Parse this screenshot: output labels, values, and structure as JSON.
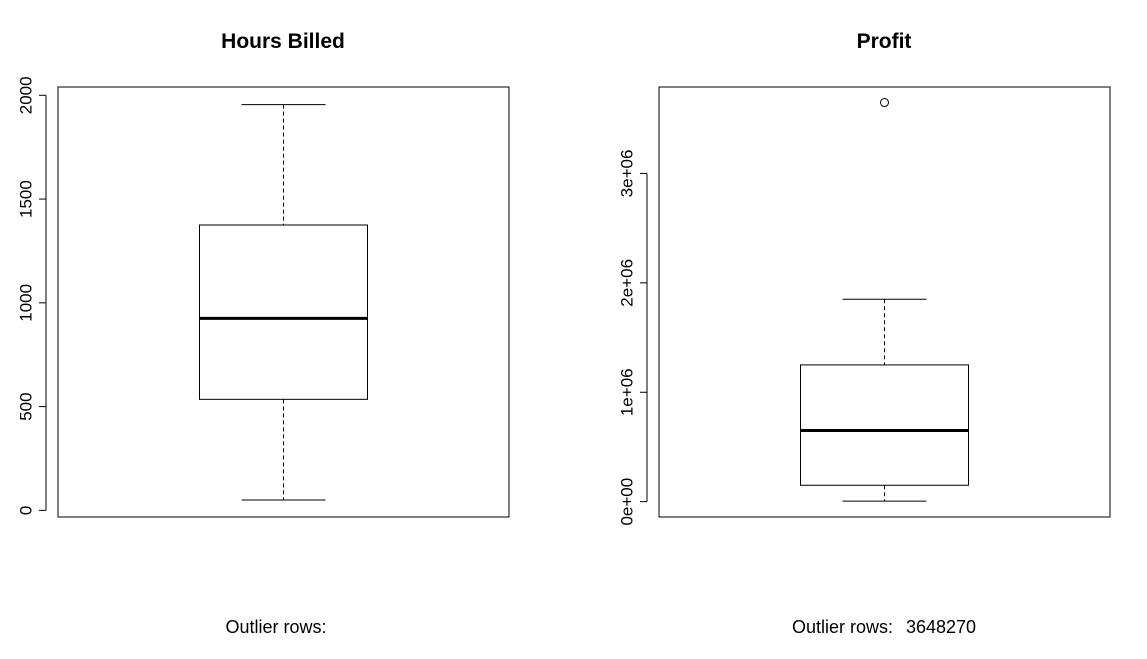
{
  "chart_data": [
    {
      "type": "box",
      "title": "Hours Billed",
      "xlabel": "",
      "ylabel": "",
      "ylim": [
        -32,
        2040
      ],
      "yticks": [
        0,
        500,
        1000,
        1500,
        2000
      ],
      "ytick_labels": [
        "0",
        "500",
        "1000",
        "1500",
        "2000"
      ],
      "box": {
        "min": 50,
        "q1": 535,
        "median": 925,
        "q3": 1375,
        "max": 1955,
        "outliers": []
      },
      "caption_label": "Outlier rows:",
      "caption_values": ""
    },
    {
      "type": "box",
      "title": "Profit",
      "xlabel": "",
      "ylabel": "",
      "ylim": [
        -140000,
        3790000
      ],
      "yticks": [
        0,
        1000000,
        2000000,
        3000000
      ],
      "ytick_labels": [
        "0e+00",
        "1e+06",
        "2e+06",
        "3e+06"
      ],
      "box": {
        "min": 5000,
        "q1": 150000,
        "median": 650000,
        "q3": 1250000,
        "max": 1850000,
        "outliers": [
          3648270
        ]
      },
      "caption_label": "Outlier rows:",
      "caption_values": "3648270"
    }
  ]
}
